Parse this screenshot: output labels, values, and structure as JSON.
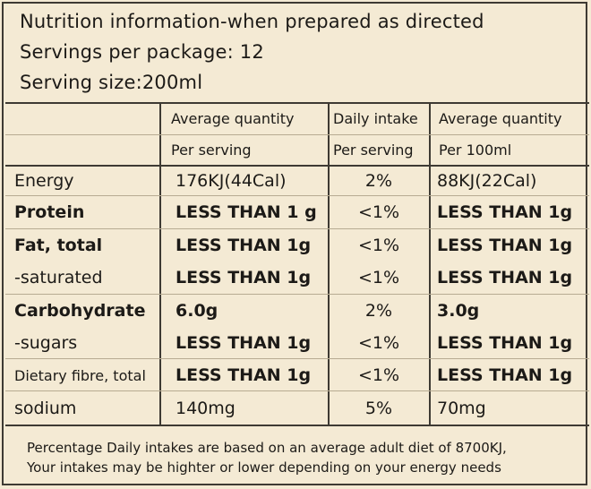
{
  "header": {
    "line1": "Nutrition information-when prepared as directed",
    "line2": "Servings per package: 12",
    "line3": "Serving size:200ml"
  },
  "table": {
    "columns": [
      {
        "top": "Average quantity",
        "sub": "Per serving"
      },
      {
        "top": "Daily intake",
        "sub": "Per serving"
      },
      {
        "top": "Average quantity",
        "sub": "Per 100ml"
      }
    ],
    "rows": [
      {
        "label": "Energy",
        "per_serving": "176KJ(44Cal)",
        "daily": "2%",
        "per_100ml": "88KJ(22Cal)"
      },
      {
        "label": "Protein",
        "per_serving": "LESS THAN 1 g",
        "daily": "<1%",
        "per_100ml": "LESS THAN 1g"
      },
      {
        "label": "Fat, total",
        "per_serving": "LESS THAN 1g",
        "daily": "<1%",
        "per_100ml": "LESS THAN 1g"
      },
      {
        "label": "-saturated",
        "per_serving": "LESS THAN 1g",
        "daily": "<1%",
        "per_100ml": "LESS THAN 1g"
      },
      {
        "label": "Carbohydrate",
        "per_serving": "6.0g",
        "daily": "2%",
        "per_100ml": "3.0g"
      },
      {
        "label": "-sugars",
        "per_serving": "LESS THAN 1g",
        "daily": "<1%",
        "per_100ml": "LESS THAN 1g"
      },
      {
        "label": "Dietary fibre, total",
        "per_serving": "LESS THAN 1g",
        "daily": "<1%",
        "per_100ml": "LESS THAN 1g"
      },
      {
        "label": "sodium",
        "per_serving": "140mg",
        "daily": "5%",
        "per_100ml": "70mg"
      }
    ]
  },
  "footnote": {
    "line1": "Percentage Daily intakes are based on an average adult diet of 8700KJ,",
    "line2": "Your intakes may be  highter or lower depending on your energy needs"
  }
}
